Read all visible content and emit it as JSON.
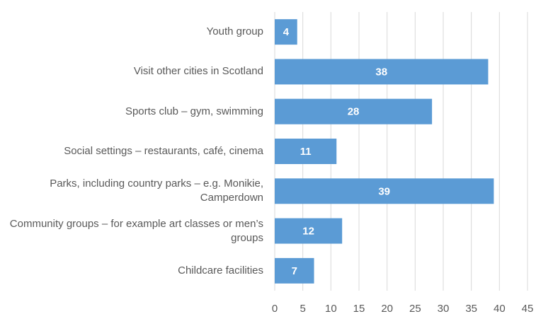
{
  "chart_data": {
    "type": "bar",
    "orientation": "horizontal",
    "categories": [
      "Youth group",
      "Visit other cities in Scotland",
      "Sports club – gym, swimming",
      "Social settings – restaurants, café, cinema",
      "Parks, including country parks – e.g. Monikie, Camperdown",
      "Community groups – for example art classes or men’s groups",
      "Childcare facilities"
    ],
    "values": [
      4,
      38,
      28,
      11,
      39,
      12,
      7
    ],
    "color": "#5b9bd5",
    "xlim": [
      0,
      45
    ],
    "xticks": [
      0,
      5,
      10,
      15,
      20,
      25,
      30,
      35,
      40,
      45
    ],
    "grid": true
  }
}
